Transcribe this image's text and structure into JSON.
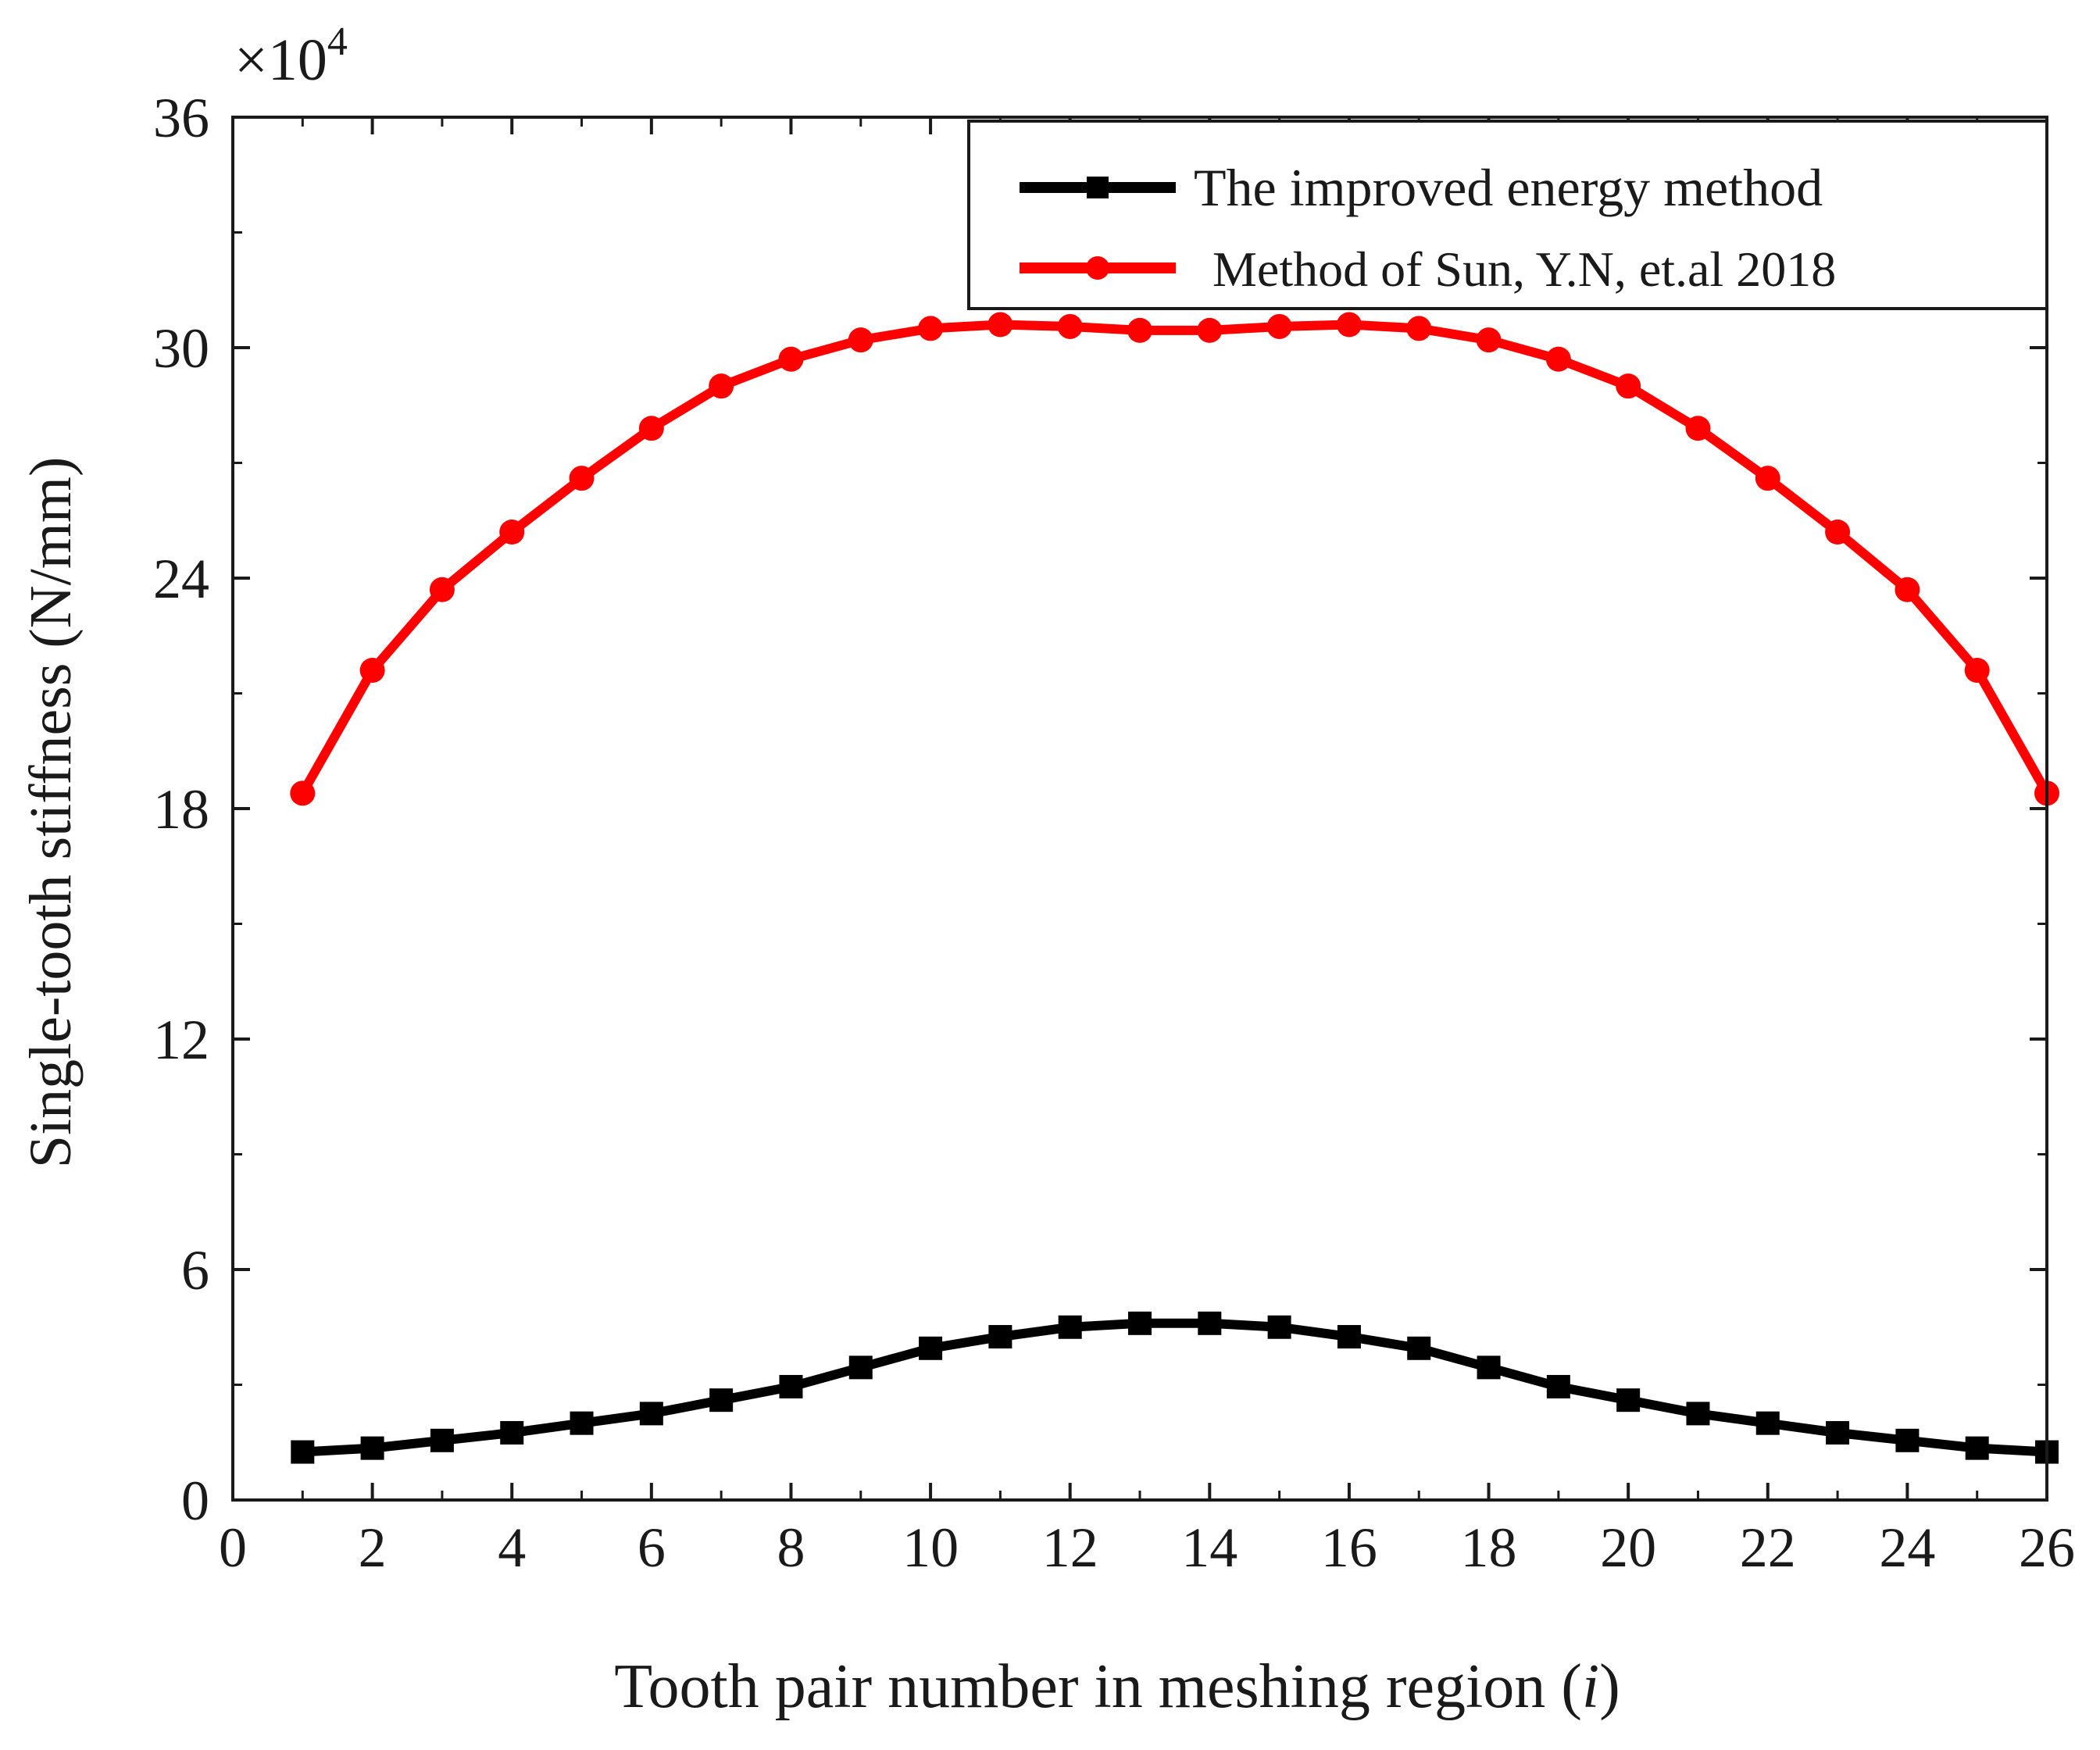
{
  "chart_data": {
    "type": "line",
    "xlabel_main": "Tooth pair number in meshing region (",
    "xlabel_var": "i",
    "xlabel_end": ")",
    "ylabel": "Single-tooth stiffness (N/mm)",
    "multiplier_base": "×10",
    "multiplier_exp": "4",
    "xlim": [
      0,
      26
    ],
    "ylim": [
      0,
      36
    ],
    "xticks": [
      "0",
      "2",
      "4",
      "6",
      "8",
      "10",
      "12",
      "14",
      "16",
      "18",
      "20",
      "22",
      "24",
      "26"
    ],
    "yticks": [
      "0",
      "6",
      "12",
      "18",
      "24",
      "30",
      "36"
    ],
    "legend_position": "top-right",
    "series": [
      {
        "name": "The improved energy method",
        "color": "#000000",
        "marker": "square",
        "x": [
          1,
          2,
          3,
          4,
          5,
          6,
          7,
          8,
          9,
          10,
          11,
          12,
          13,
          14,
          15,
          16,
          17,
          18,
          19,
          20,
          21,
          22,
          23,
          24,
          25,
          26
        ],
        "values": [
          1.25,
          1.35,
          1.55,
          1.75,
          2.0,
          2.25,
          2.6,
          2.95,
          3.45,
          3.95,
          4.25,
          4.5,
          4.6,
          4.6,
          4.5,
          4.25,
          3.95,
          3.45,
          2.95,
          2.6,
          2.25,
          2.0,
          1.75,
          1.55,
          1.35,
          1.25
        ]
      },
      {
        "name": "Method of Sun, Y.N, et.al 2018",
        "color": "#ff0000",
        "marker": "circle",
        "x": [
          1,
          2,
          3,
          4,
          5,
          6,
          7,
          8,
          9,
          10,
          11,
          12,
          13,
          14,
          15,
          16,
          17,
          18,
          19,
          20,
          21,
          22,
          23,
          24,
          25,
          26
        ],
        "values": [
          18.4,
          21.6,
          23.7,
          25.2,
          26.6,
          27.9,
          29.0,
          29.7,
          30.2,
          30.5,
          30.6,
          30.55,
          30.45,
          30.45,
          30.55,
          30.6,
          30.5,
          30.2,
          29.7,
          29.0,
          27.9,
          26.6,
          25.2,
          23.7,
          21.6,
          18.4
        ]
      }
    ]
  }
}
